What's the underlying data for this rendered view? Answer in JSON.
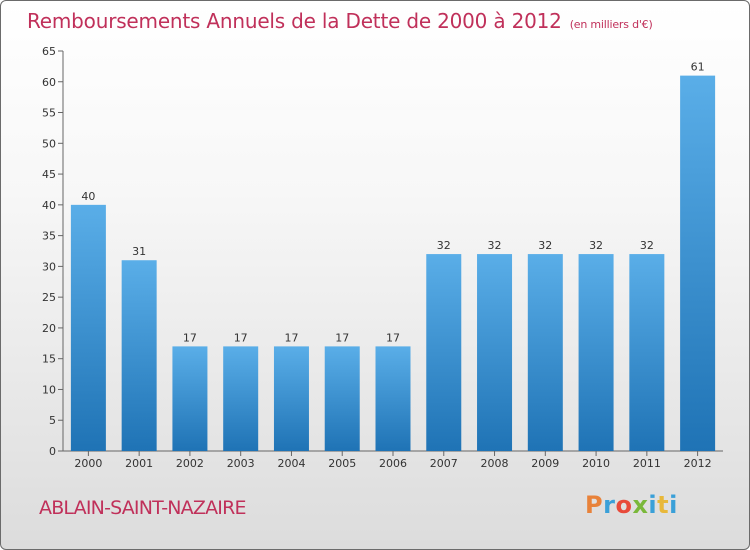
{
  "chart_data": {
    "type": "bar",
    "title": "Remboursements Annuels de la Dette de 2000 à 2012",
    "subtitle": "(en milliers d'€)",
    "categories": [
      "2000",
      "2001",
      "2002",
      "2003",
      "2004",
      "2005",
      "2006",
      "2007",
      "2008",
      "2009",
      "2010",
      "2011",
      "2012"
    ],
    "values": [
      40,
      31,
      17,
      17,
      17,
      17,
      17,
      32,
      32,
      32,
      32,
      32,
      61
    ],
    "ylim": [
      0,
      65
    ],
    "yticks": [
      0,
      5,
      10,
      15,
      20,
      25,
      30,
      35,
      40,
      45,
      50,
      55,
      60,
      65
    ],
    "grid": false,
    "colors": {
      "bar_top": "#5aaee8",
      "bar_bottom": "#1f73b5",
      "title": "#c0305a",
      "axis": "#333333"
    }
  },
  "footer": {
    "commune": "ABLAIN-SAINT-NAZAIRE",
    "logo": "Proxiti",
    "logo_colors": [
      "#e8823a",
      "#3aa0d8",
      "#e84a3a",
      "#7ab83a",
      "#3aa0d8",
      "#e8b83a",
      "#3aa0d8"
    ]
  }
}
